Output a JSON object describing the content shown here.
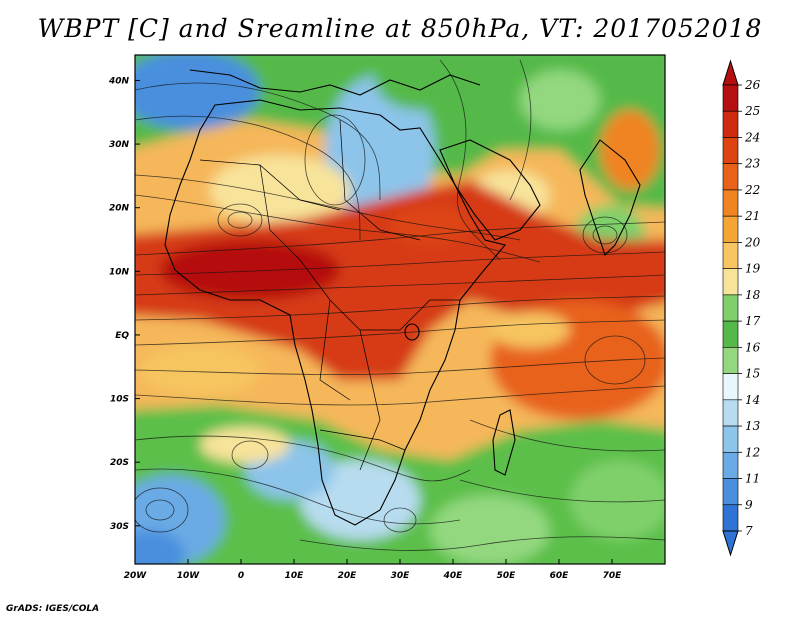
{
  "title": "WBPT [C] and Sreamline at 850hPa, VT: 2017052018",
  "footer": "GrADS: IGES/COLA",
  "map": {
    "lat_labels": [
      "40N",
      "30N",
      "20N",
      "10N",
      "EQ",
      "10S",
      "20S",
      "30S"
    ],
    "lon_labels": [
      "20W",
      "10W",
      "0",
      "10E",
      "20E",
      "30E",
      "40E",
      "50E",
      "60E",
      "70E"
    ],
    "lon_range": [
      -20,
      80
    ],
    "lat_range": [
      -36,
      44
    ]
  },
  "colorbar": {
    "labels": [
      "26",
      "25",
      "24",
      "23",
      "22",
      "21",
      "20",
      "19",
      "18",
      "17",
      "16",
      "15",
      "14",
      "13",
      "12",
      "11",
      "9",
      "7"
    ],
    "colors": [
      "#b50f0f",
      "#d02a10",
      "#de4412",
      "#e8621a",
      "#f08420",
      "#f5a436",
      "#f7c561",
      "#f8e39a",
      "#7fd06a",
      "#54b948",
      "#93d87f",
      "#e8f7fb",
      "#b8dcef",
      "#8cc4ea",
      "#6aaae5",
      "#4a8fde",
      "#2f73d4"
    ]
  },
  "colors": {
    "hot": "#d63b14",
    "warm": "#f19a2c",
    "mild": "#f6d48a",
    "green": "#5cbf4a",
    "cool": "#9fd0ee",
    "cold": "#3f88d8"
  }
}
